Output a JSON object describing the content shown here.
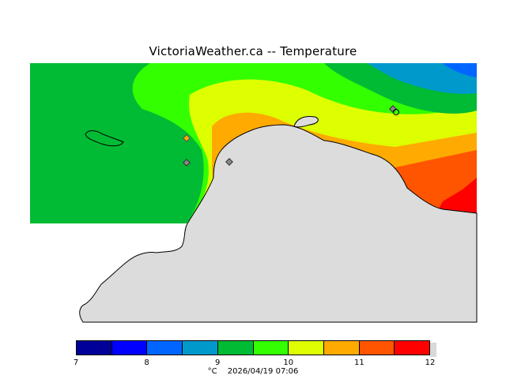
{
  "header": {
    "title": "VictoriaWeather.ca  --  Temperature"
  },
  "legend": {
    "ticks": [
      "7",
      "8",
      "9",
      "10",
      "11",
      "12"
    ],
    "colors": [
      "#000099",
      "#0000ff",
      "#0066ff",
      "#0099cc",
      "#00bb33",
      "#33ff00",
      "#ddff00",
      "#ffaa00",
      "#ff5500",
      "#ff0000"
    ],
    "unit": "°C",
    "timestamp": "2026/04/19 07:06"
  },
  "map": {
    "land_color": "#dcdcdc",
    "zone_colors": {
      "outer": "#00bb33",
      "band_9_5": "#33ff00",
      "band_10": "#ddff00",
      "band_10_5": "#ffaa00",
      "band_11": "#ff5500",
      "band_11_5": "#ff0000",
      "band_8_5": "#0099cc",
      "band_8": "#0066ff"
    },
    "stations": [
      "station-1",
      "station-2",
      "station-3",
      "station-4"
    ]
  }
}
